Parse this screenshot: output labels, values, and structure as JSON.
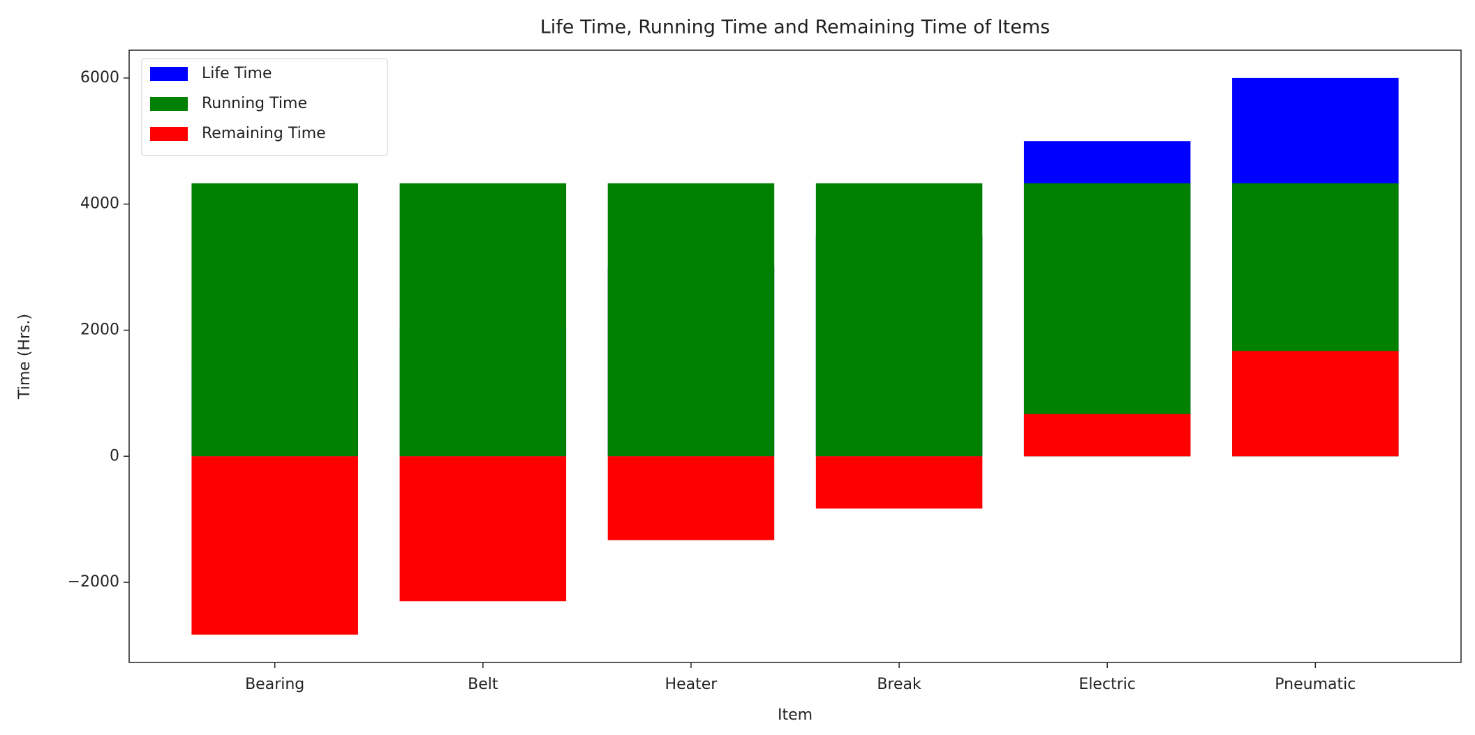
{
  "chart_data": {
    "type": "bar",
    "title": "Life Time, Running Time and Remaining Time of Items",
    "x_label": "Item",
    "y_label": "Time (Hrs.)",
    "categories": [
      "Bearing",
      "Belt",
      "Heater",
      "Break",
      "Electric",
      "Pneumatic"
    ],
    "series": [
      {
        "name": "Life Time",
        "color": "#0000ff",
        "values": [
          1500,
          2030,
          3000,
          3500,
          5000,
          6000
        ]
      },
      {
        "name": "Running Time",
        "color": "#008000",
        "values": [
          4330,
          4330,
          4330,
          4330,
          4330,
          4330
        ]
      },
      {
        "name": "Remaining Time",
        "color": "#ff0000",
        "values": [
          -2830,
          -2300,
          -1330,
          -830,
          670,
          1670
        ]
      }
    ],
    "ylim": [
      -3271,
      6441
    ],
    "yticks": [
      {
        "value": -2000,
        "label": "−2000"
      },
      0,
      2000,
      4000,
      6000
    ],
    "legend": "upper left",
    "grid": false
  }
}
